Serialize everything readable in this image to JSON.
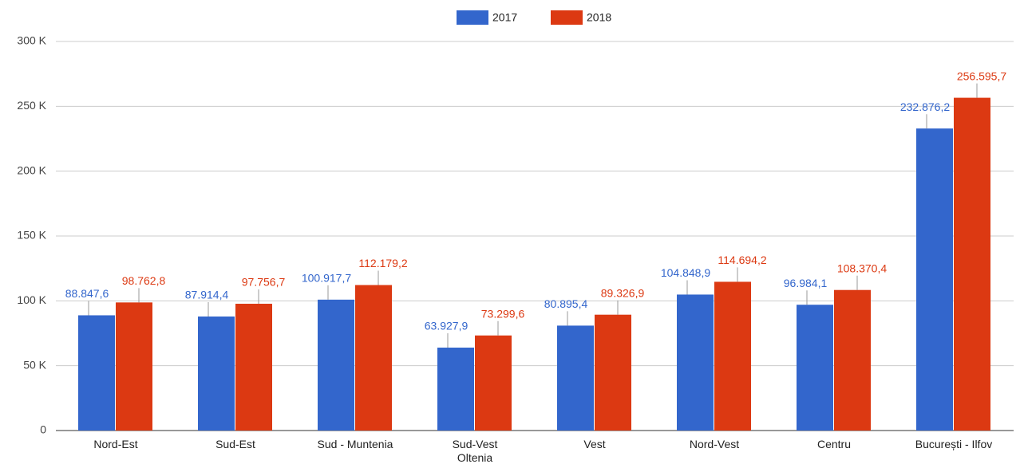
{
  "chart_data": {
    "type": "bar",
    "categories": [
      "Nord-Est",
      "Sud-Est",
      "Sud - Muntenia",
      "Sud-Vest\nOltenia",
      "Vest",
      "Nord-Vest",
      "Centru",
      "București - Ilfov"
    ],
    "series": [
      {
        "name": "2017",
        "color": "#3366cc",
        "values": [
          88847.6,
          87914.4,
          100917.7,
          63927.9,
          80895.4,
          104848.9,
          96984.1,
          232876.2
        ],
        "value_labels": [
          "88.847,6",
          "87.914,4",
          "100.917,7",
          "63.927,9",
          "80.895,4",
          "104.848,9",
          "96.984,1",
          "232.876,2"
        ]
      },
      {
        "name": "2018",
        "color": "#dc3912",
        "values": [
          98762.8,
          97756.7,
          112179.2,
          73299.6,
          89326.9,
          114694.2,
          108370.4,
          256595.7
        ],
        "value_labels": [
          "98.762,8",
          "97.756,7",
          "112.179,2",
          "73.299,6",
          "89.326,9",
          "114.694,2",
          "108.370,4",
          "256.595,7"
        ]
      }
    ],
    "ylim": [
      0,
      300000
    ],
    "yticks": [
      0,
      {
        "value": 50000,
        "label": "50 K"
      },
      {
        "value": 100000,
        "label": "100 K"
      },
      {
        "value": 150000,
        "label": "150 K"
      },
      {
        "value": 200000,
        "label": "200 K"
      },
      {
        "value": 250000,
        "label": "250 K"
      },
      {
        "value": 300000,
        "label": "300 K"
      }
    ],
    "grid": true,
    "legend": "top"
  }
}
